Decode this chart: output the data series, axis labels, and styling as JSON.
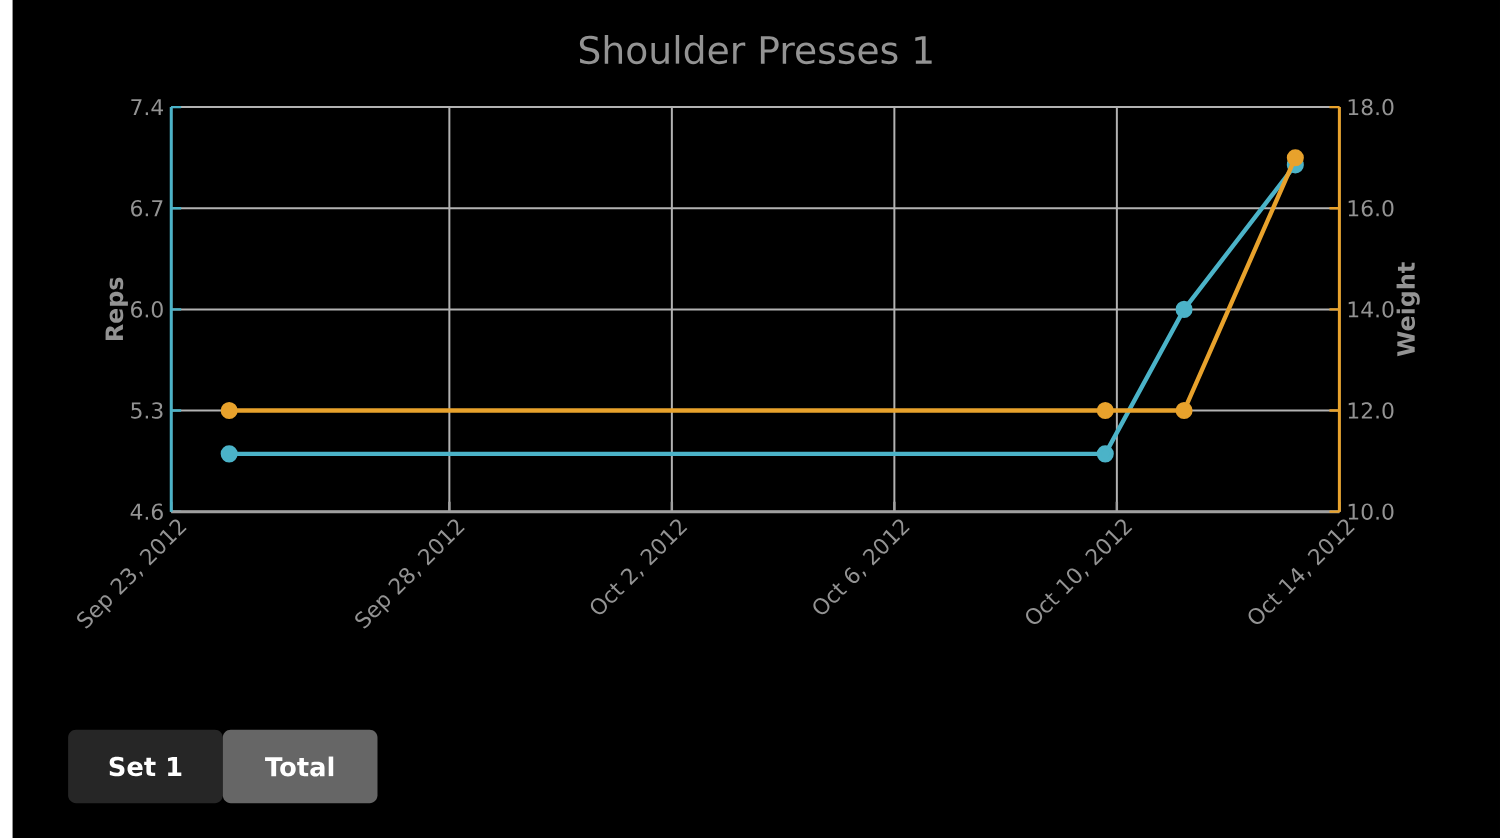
{
  "chart_data": {
    "type": "line",
    "title": "Shoulder Presses 1",
    "ylabel": "Reps",
    "y2label": "Weight",
    "x": [
      "2012-09-24T01:00",
      "2012-10-09T19:00",
      "2012-10-11T05:00",
      "2012-10-13T05:00"
    ],
    "series": [
      {
        "color": "#4bb3c8",
        "values": [
          5,
          5,
          6,
          7
        ]
      },
      {
        "color": "#e8a22c",
        "values": [
          12,
          12,
          12,
          17
        ],
        "axis": "y2"
      }
    ],
    "xlim": [
      "2012-09-23T00:00",
      "2012-10-14T00:00"
    ],
    "xticks": [
      {
        "value": "2012-09-23",
        "label": "Sep 23, 2012"
      },
      {
        "value": "2012-09-28",
        "label": "Sep 28, 2012"
      },
      {
        "value": "2012-10-02",
        "label": "Oct 2, 2012"
      },
      {
        "value": "2012-10-06",
        "label": "Oct 6, 2012"
      },
      {
        "value": "2012-10-10",
        "label": "Oct 10, 2012"
      },
      {
        "value": "2012-10-14",
        "label": "Oct 14, 2012"
      }
    ],
    "ylim": [
      4.6,
      7.4
    ],
    "yticks": [
      4.6,
      5.3,
      {
        "value": 6,
        "label": "6.0"
      },
      6.7,
      7.4
    ],
    "y2lim": [
      10,
      18
    ],
    "y2ticks": [
      {
        "value": 10,
        "label": "10.0"
      },
      {
        "value": 12,
        "label": "12.0"
      },
      {
        "value": 14,
        "label": "14.0"
      },
      {
        "value": 16,
        "label": "16.0"
      },
      {
        "value": 18,
        "label": "18.0"
      }
    ],
    "grid": true,
    "marker": "circle",
    "line_style": "solid",
    "annotations": [
      "Set 1",
      "Total"
    ]
  }
}
